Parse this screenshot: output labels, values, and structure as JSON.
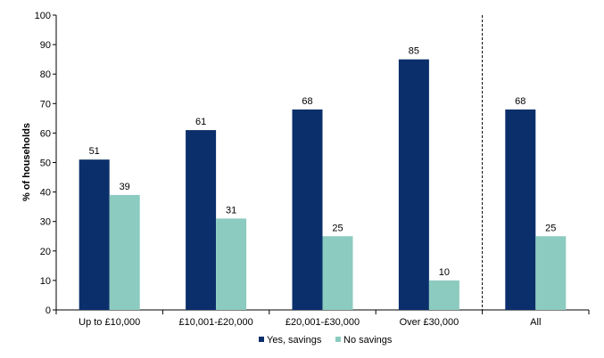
{
  "chart_data": {
    "type": "bar",
    "categories": [
      "Up to £10,000",
      "£10,001-£20,000",
      "£20,001-£30,000",
      "Over £30,000",
      "All"
    ],
    "series": [
      {
        "name": "Yes, savings",
        "values": [
          51,
          61,
          68,
          85,
          68
        ],
        "color": "#0b2f6b"
      },
      {
        "name": "No savings",
        "values": [
          39,
          31,
          25,
          10,
          25
        ],
        "color": "#8ccbbf"
      }
    ],
    "ylabel": "% of households",
    "ylim": [
      0,
      100
    ],
    "yticks": [
      0,
      10,
      20,
      30,
      40,
      50,
      60,
      70,
      80,
      90,
      100
    ],
    "separator_before_category": "All",
    "separator_style": "dashed",
    "legend_position": "bottom",
    "grid": false
  }
}
